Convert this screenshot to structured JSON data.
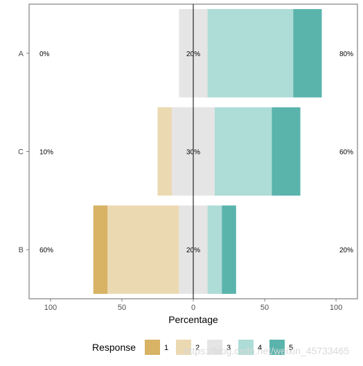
{
  "chart_data": {
    "type": "bar",
    "orientation": "horizontal",
    "stacked": "diverging",
    "xlabel": "Percentage",
    "ylabel": "",
    "xlim": [
      -115,
      115
    ],
    "x_ticks": [
      -100,
      -50,
      0,
      50,
      100
    ],
    "x_tick_labels": [
      "100",
      "50",
      "0",
      "50",
      "100"
    ],
    "grid": false,
    "legend_title": "Response",
    "legend_position": "bottom",
    "categories": [
      "A",
      "C",
      "B"
    ],
    "series": [
      {
        "name": "1",
        "color": "#D8B265",
        "values": [
          0,
          0,
          10
        ]
      },
      {
        "name": "2",
        "color": "#EBD9B2",
        "values": [
          0,
          10,
          50
        ]
      },
      {
        "name": "3",
        "color": "#E5E5E5",
        "values": [
          20,
          30,
          20
        ]
      },
      {
        "name": "4",
        "color": "#AEDCD7",
        "values": [
          60,
          40,
          10
        ]
      },
      {
        "name": "5",
        "color": "#5AB4AC",
        "values": [
          20,
          20,
          10
        ]
      }
    ],
    "left_labels": [
      "0%",
      "10%",
      "60%"
    ],
    "center_labels": [
      "20%",
      "30%",
      "20%"
    ],
    "right_labels": [
      "80%",
      "60%",
      "20%"
    ]
  },
  "watermark": "https://blog.csdn.net/weixin_45733465"
}
